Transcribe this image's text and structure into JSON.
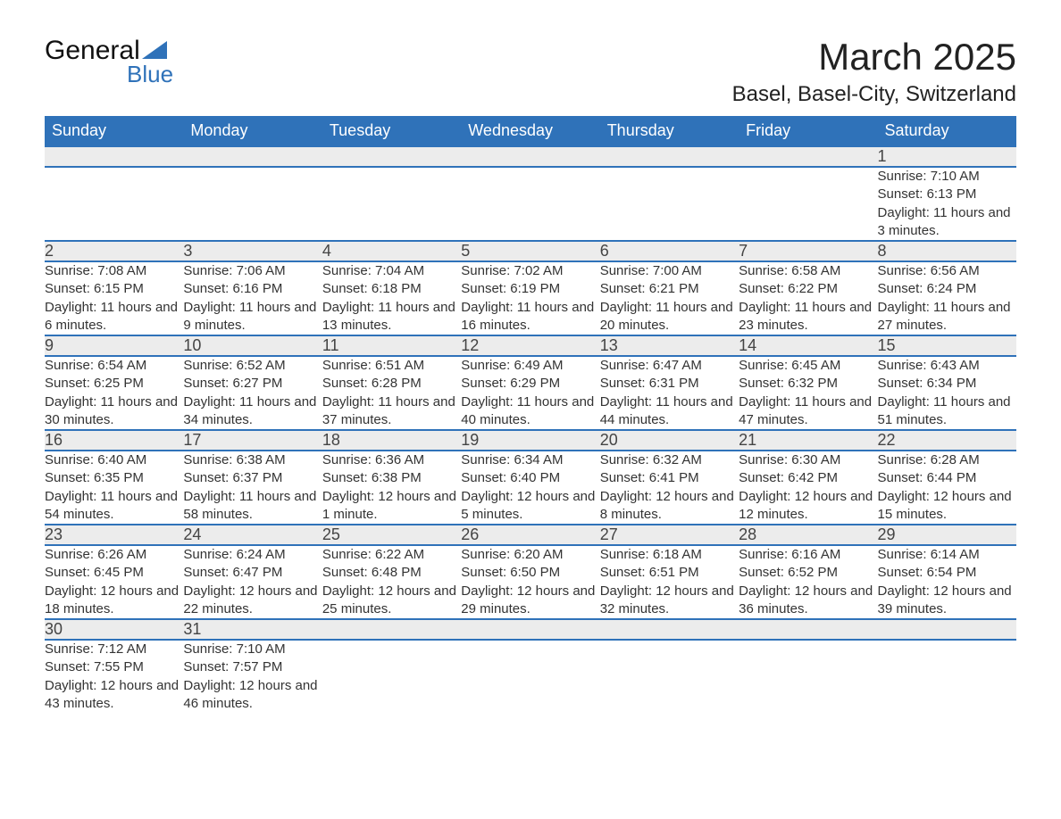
{
  "brand": {
    "name1": "General",
    "name2": "Blue"
  },
  "title": "March 2025",
  "location": "Basel, Basel-City, Switzerland",
  "colors": {
    "header_bg": "#2f72b9",
    "header_text": "#ffffff",
    "daynum_bg": "#ececec",
    "row_divider": "#2f72b9",
    "text": "#333333",
    "background": "#ffffff"
  },
  "fonts": {
    "title_size_pt": 42,
    "location_size_pt": 24,
    "header_size_pt": 18,
    "body_size_pt": 15
  },
  "day_headers": [
    "Sunday",
    "Monday",
    "Tuesday",
    "Wednesday",
    "Thursday",
    "Friday",
    "Saturday"
  ],
  "weeks": [
    [
      null,
      null,
      null,
      null,
      null,
      null,
      {
        "n": "1",
        "sunrise": "7:10 AM",
        "sunset": "6:13 PM",
        "daylight": "11 hours and 3 minutes."
      }
    ],
    [
      {
        "n": "2",
        "sunrise": "7:08 AM",
        "sunset": "6:15 PM",
        "daylight": "11 hours and 6 minutes."
      },
      {
        "n": "3",
        "sunrise": "7:06 AM",
        "sunset": "6:16 PM",
        "daylight": "11 hours and 9 minutes."
      },
      {
        "n": "4",
        "sunrise": "7:04 AM",
        "sunset": "6:18 PM",
        "daylight": "11 hours and 13 minutes."
      },
      {
        "n": "5",
        "sunrise": "7:02 AM",
        "sunset": "6:19 PM",
        "daylight": "11 hours and 16 minutes."
      },
      {
        "n": "6",
        "sunrise": "7:00 AM",
        "sunset": "6:21 PM",
        "daylight": "11 hours and 20 minutes."
      },
      {
        "n": "7",
        "sunrise": "6:58 AM",
        "sunset": "6:22 PM",
        "daylight": "11 hours and 23 minutes."
      },
      {
        "n": "8",
        "sunrise": "6:56 AM",
        "sunset": "6:24 PM",
        "daylight": "11 hours and 27 minutes."
      }
    ],
    [
      {
        "n": "9",
        "sunrise": "6:54 AM",
        "sunset": "6:25 PM",
        "daylight": "11 hours and 30 minutes."
      },
      {
        "n": "10",
        "sunrise": "6:52 AM",
        "sunset": "6:27 PM",
        "daylight": "11 hours and 34 minutes."
      },
      {
        "n": "11",
        "sunrise": "6:51 AM",
        "sunset": "6:28 PM",
        "daylight": "11 hours and 37 minutes."
      },
      {
        "n": "12",
        "sunrise": "6:49 AM",
        "sunset": "6:29 PM",
        "daylight": "11 hours and 40 minutes."
      },
      {
        "n": "13",
        "sunrise": "6:47 AM",
        "sunset": "6:31 PM",
        "daylight": "11 hours and 44 minutes."
      },
      {
        "n": "14",
        "sunrise": "6:45 AM",
        "sunset": "6:32 PM",
        "daylight": "11 hours and 47 minutes."
      },
      {
        "n": "15",
        "sunrise": "6:43 AM",
        "sunset": "6:34 PM",
        "daylight": "11 hours and 51 minutes."
      }
    ],
    [
      {
        "n": "16",
        "sunrise": "6:40 AM",
        "sunset": "6:35 PM",
        "daylight": "11 hours and 54 minutes."
      },
      {
        "n": "17",
        "sunrise": "6:38 AM",
        "sunset": "6:37 PM",
        "daylight": "11 hours and 58 minutes."
      },
      {
        "n": "18",
        "sunrise": "6:36 AM",
        "sunset": "6:38 PM",
        "daylight": "12 hours and 1 minute."
      },
      {
        "n": "19",
        "sunrise": "6:34 AM",
        "sunset": "6:40 PM",
        "daylight": "12 hours and 5 minutes."
      },
      {
        "n": "20",
        "sunrise": "6:32 AM",
        "sunset": "6:41 PM",
        "daylight": "12 hours and 8 minutes."
      },
      {
        "n": "21",
        "sunrise": "6:30 AM",
        "sunset": "6:42 PM",
        "daylight": "12 hours and 12 minutes."
      },
      {
        "n": "22",
        "sunrise": "6:28 AM",
        "sunset": "6:44 PM",
        "daylight": "12 hours and 15 minutes."
      }
    ],
    [
      {
        "n": "23",
        "sunrise": "6:26 AM",
        "sunset": "6:45 PM",
        "daylight": "12 hours and 18 minutes."
      },
      {
        "n": "24",
        "sunrise": "6:24 AM",
        "sunset": "6:47 PM",
        "daylight": "12 hours and 22 minutes."
      },
      {
        "n": "25",
        "sunrise": "6:22 AM",
        "sunset": "6:48 PM",
        "daylight": "12 hours and 25 minutes."
      },
      {
        "n": "26",
        "sunrise": "6:20 AM",
        "sunset": "6:50 PM",
        "daylight": "12 hours and 29 minutes."
      },
      {
        "n": "27",
        "sunrise": "6:18 AM",
        "sunset": "6:51 PM",
        "daylight": "12 hours and 32 minutes."
      },
      {
        "n": "28",
        "sunrise": "6:16 AM",
        "sunset": "6:52 PM",
        "daylight": "12 hours and 36 minutes."
      },
      {
        "n": "29",
        "sunrise": "6:14 AM",
        "sunset": "6:54 PM",
        "daylight": "12 hours and 39 minutes."
      }
    ],
    [
      {
        "n": "30",
        "sunrise": "7:12 AM",
        "sunset": "7:55 PM",
        "daylight": "12 hours and 43 minutes."
      },
      {
        "n": "31",
        "sunrise": "7:10 AM",
        "sunset": "7:57 PM",
        "daylight": "12 hours and 46 minutes."
      },
      null,
      null,
      null,
      null,
      null
    ]
  ],
  "labels": {
    "sunrise": "Sunrise: ",
    "sunset": "Sunset: ",
    "daylight": "Daylight: "
  }
}
